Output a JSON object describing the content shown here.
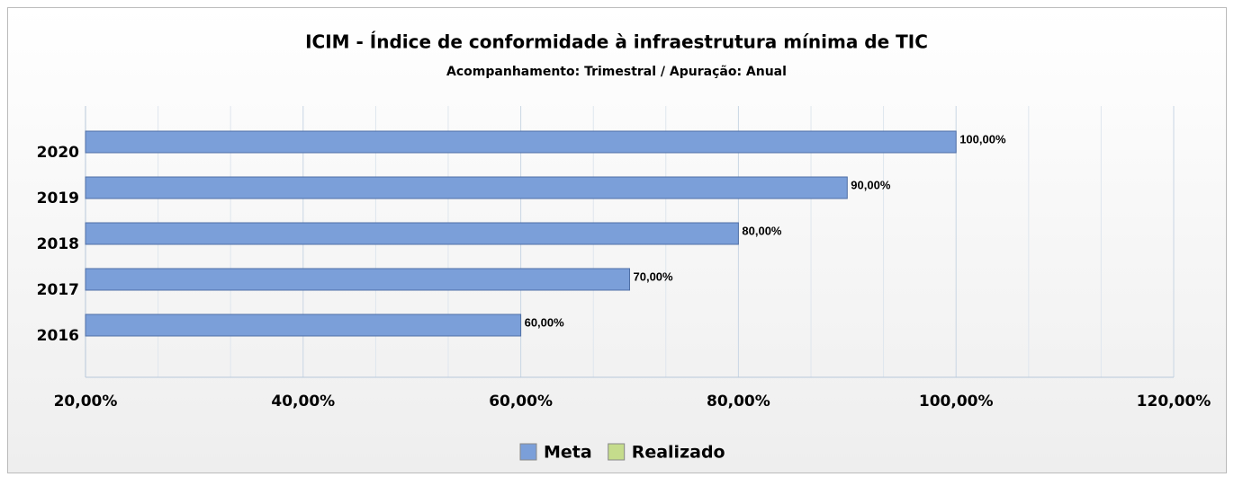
{
  "chart_data": {
    "type": "hbar",
    "title": "ICIM - Índice de conformidade à infraestrutura mínima de TIC",
    "subtitle": "Acompanhamento: Trimestral /  Apuração: Anual",
    "categories": [
      "2020",
      "2019",
      "2018",
      "2017",
      "2016"
    ],
    "series": [
      {
        "name": "Meta",
        "color": "#7b9fd9",
        "values": [
          100,
          90,
          80,
          70,
          60
        ],
        "value_labels": [
          "100,00%",
          "90,00%",
          "80,00%",
          "70,00%",
          "60,00%"
        ]
      },
      {
        "name": "Realizado",
        "color": "#c5dc8c",
        "values": [
          null,
          null,
          null,
          null,
          null
        ]
      }
    ],
    "xlim": [
      20,
      120
    ],
    "xticks": [
      {
        "value": 20,
        "label": "20,00%"
      },
      {
        "value": 40,
        "label": "40,00%"
      },
      {
        "value": 60,
        "label": "60,00%"
      },
      {
        "value": 80,
        "label": "80,00%"
      },
      {
        "value": 100,
        "label": "100,00%"
      },
      {
        "value": 120,
        "label": "120,00%"
      }
    ],
    "minor_xticks": [
      26.67,
      33.33,
      46.67,
      53.33,
      66.67,
      73.33,
      86.67,
      93.33,
      106.67,
      113.33
    ],
    "grid": true,
    "legend": "bottom"
  }
}
